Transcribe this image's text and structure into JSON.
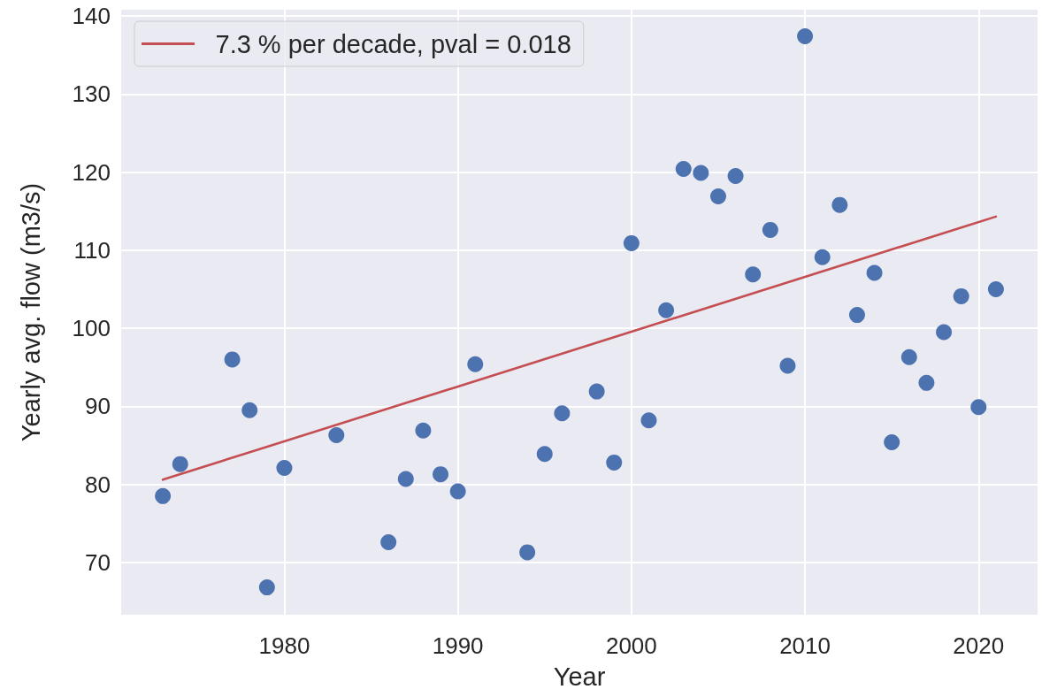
{
  "chart_data": {
    "type": "scatter",
    "xlabel": "Year",
    "ylabel": "Yearly avg. flow (m3/s)",
    "xlim": [
      1970.6,
      2023.4
    ],
    "ylim": [
      63.3,
      140.8
    ],
    "xticks": [
      1980,
      1990,
      2000,
      2010,
      2020
    ],
    "yticks": [
      70,
      80,
      90,
      100,
      110,
      120,
      130,
      140
    ],
    "grid": true,
    "legend": "top left",
    "marker": "circle",
    "series": [
      {
        "color": "#4c72b0",
        "x": [
          1973,
          1974,
          1977,
          1978,
          1979,
          1980,
          1983,
          1986,
          1987,
          1988,
          1989,
          1990,
          1991,
          1994,
          1995,
          1996,
          1998,
          1999,
          2000,
          2001,
          2002,
          2003,
          2004,
          2005,
          2006,
          2007,
          2008,
          2009,
          2010,
          2011,
          2012,
          2013,
          2014,
          2015,
          2016,
          2017,
          2018,
          2019,
          2020,
          2021
        ],
        "values": [
          78.5,
          82.6,
          96.0,
          89.5,
          66.8,
          82.1,
          86.3,
          72.6,
          80.7,
          86.9,
          81.3,
          79.1,
          95.4,
          71.3,
          83.9,
          89.1,
          91.9,
          82.8,
          110.9,
          88.2,
          102.3,
          120.4,
          119.9,
          116.9,
          119.5,
          106.9,
          112.6,
          95.2,
          137.4,
          109.1,
          115.8,
          101.7,
          107.1,
          85.4,
          96.3,
          93.0,
          99.5,
          104.1,
          89.9,
          105.0
        ]
      },
      {
        "type": "line",
        "name": "7.3 % per decade, pval = 0.018",
        "color": "#c44e52",
        "x": [
          1973,
          2021
        ],
        "values": [
          80.6,
          114.3
        ],
        "marker": "none",
        "line_style": "solid"
      }
    ]
  }
}
